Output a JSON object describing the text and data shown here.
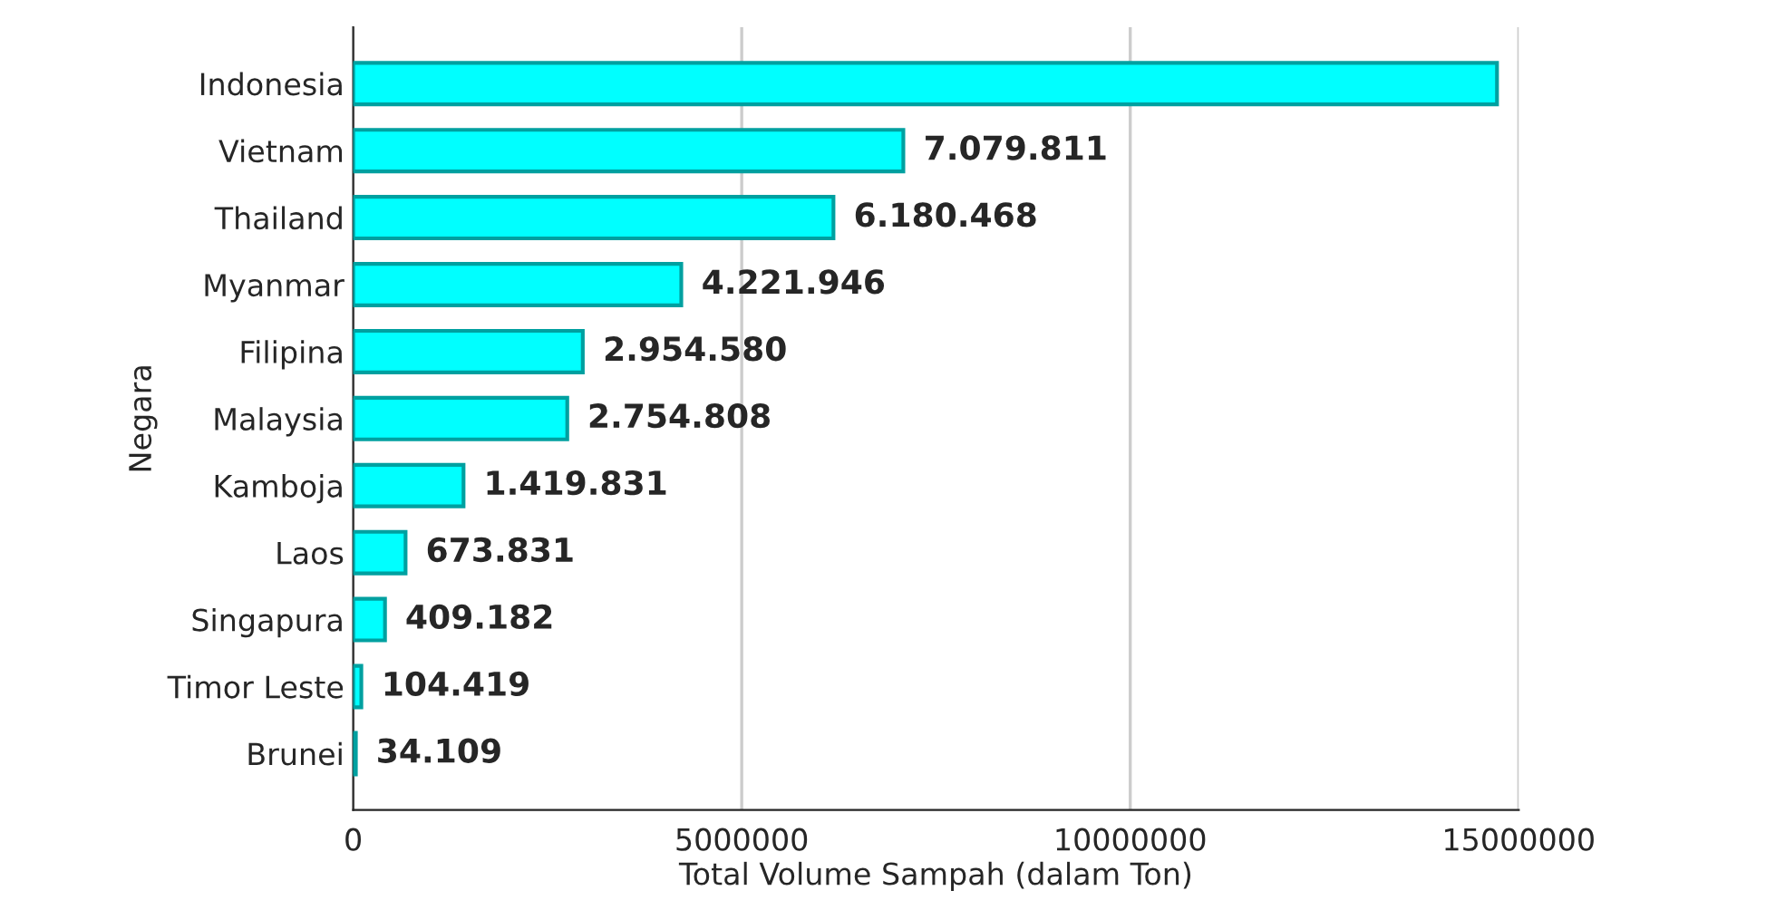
{
  "chart_data": {
    "type": "bar",
    "orientation": "horizontal",
    "xlabel": "Total Volume Sampah (dalam Ton)",
    "ylabel": "Negara",
    "categories": [
      "Indonesia",
      "Vietnam",
      "Thailand",
      "Myanmar",
      "Filipina",
      "Malaysia",
      "Kamboja",
      "Laos",
      "Singapura",
      "Timor Leste",
      "Brunei"
    ],
    "values": [
      14720000,
      7079811,
      6180468,
      4221946,
      2954580,
      2754808,
      1419831,
      673831,
      409182,
      104419,
      34109
    ],
    "value_labels": [
      null,
      "7.079.811",
      "6.180.468",
      "4.221.946",
      "2.954.580",
      "2.754.808",
      "1.419.831",
      "673.831",
      "409.182",
      "104.419",
      "34.109"
    ],
    "color": "#00ffff",
    "xlim": [
      0,
      15000000
    ],
    "xticks": [
      0,
      5000000,
      10000000,
      15000000
    ],
    "grid": "x"
  }
}
